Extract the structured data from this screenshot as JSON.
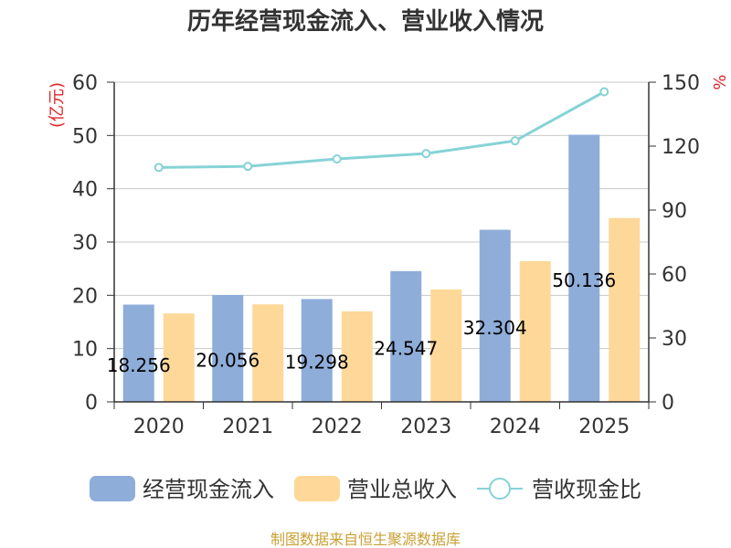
{
  "chart_data": {
    "type": "bar",
    "title": "历年经营现金流入、营业收入情况",
    "categories": [
      "2020",
      "2021",
      "2022",
      "2023",
      "2024",
      "2025"
    ],
    "series": [
      {
        "name": "经营现金流入",
        "kind": "bar",
        "axis": "left",
        "color": "#8eadd9",
        "values": [
          18.256,
          20.056,
          19.298,
          24.547,
          32.304,
          50.136
        ]
      },
      {
        "name": "营业总收入",
        "kind": "bar",
        "axis": "left",
        "color": "#fdd898",
        "values": [
          16.6,
          18.3,
          17.0,
          21.1,
          26.4,
          34.5
        ]
      },
      {
        "name": "营收现金比",
        "kind": "line",
        "axis": "right",
        "color": "#86d3d6",
        "values": [
          110.0,
          110.5,
          114.0,
          116.5,
          122.5,
          145.5
        ]
      }
    ],
    "data_labels": [
      "18.256",
      "20.056",
      "19.298",
      "24.547",
      "32.304",
      "50.136"
    ],
    "y_left": {
      "unit": "(亿元)",
      "range": [
        0,
        60
      ],
      "ticks": [
        "0",
        "10",
        "20",
        "30",
        "40",
        "50",
        "60"
      ]
    },
    "y_right": {
      "unit": "%",
      "range": [
        0,
        150
      ],
      "ticks": [
        "0",
        "30",
        "60",
        "90",
        "120",
        "150"
      ]
    },
    "grid": true,
    "legend_position": "bottom"
  },
  "footer": {
    "source": "制图数据来自恒生聚源数据库"
  }
}
